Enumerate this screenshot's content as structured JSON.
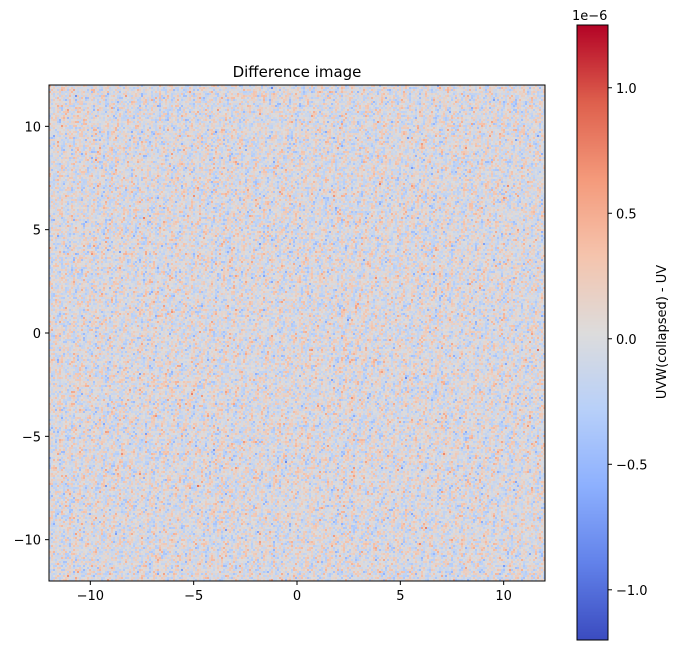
{
  "chart_data": {
    "type": "heatmap",
    "title": "Difference image",
    "xlabel": "",
    "ylabel": "",
    "xlim": [
      -12,
      12
    ],
    "ylim": [
      -12,
      12
    ],
    "x_ticks": [
      -10,
      -5,
      0,
      5,
      10
    ],
    "y_ticks": [
      -10,
      -5,
      0,
      5,
      10
    ],
    "x_tick_labels": [
      "−10",
      "−5",
      "0",
      "5",
      "10"
    ],
    "y_tick_labels": [
      "−10",
      "−5",
      "0",
      "5",
      "10"
    ],
    "grid": false,
    "colormap": "coolwarm",
    "description_values": "fine-grained noise in difference values, approximately zero mean, amplitude within colorbar range",
    "value_range": [
      -1.2e-06,
      1.25e-06
    ],
    "colorbar": {
      "label": "UVW(collapsed) - UV",
      "offset_text": "1e−6",
      "ticks": [
        -1.0,
        -0.5,
        0.0,
        0.5,
        1.0
      ],
      "tick_labels": [
        "−1.0",
        "−0.5",
        "0.0",
        "0.5",
        "1.0"
      ],
      "min": -1.2,
      "max": 1.25
    },
    "colors": {
      "cmap_low": "#3b4cc0",
      "cmap_mid": "#dddcdc",
      "cmap_high": "#b40426"
    }
  }
}
